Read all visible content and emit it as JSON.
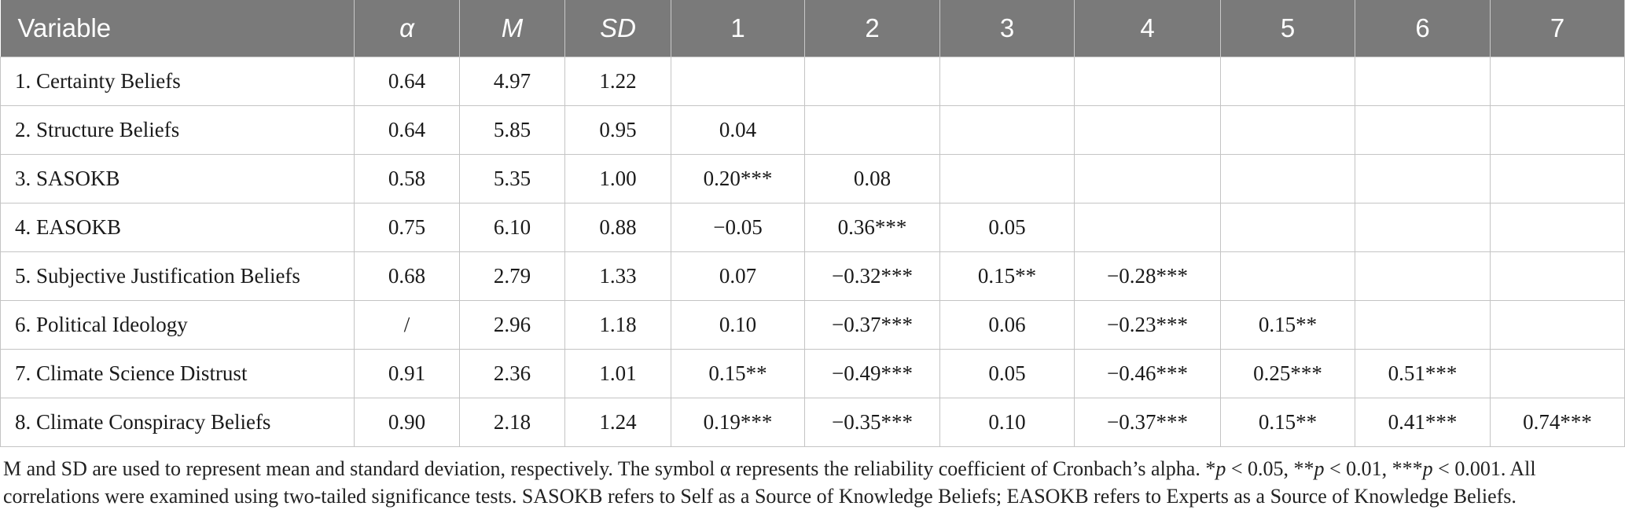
{
  "table": {
    "headers": [
      {
        "label": "Variable",
        "italic": false
      },
      {
        "label": "α",
        "italic": true
      },
      {
        "label": "M",
        "italic": true
      },
      {
        "label": "SD",
        "italic": true
      },
      {
        "label": "1",
        "italic": false
      },
      {
        "label": "2",
        "italic": false
      },
      {
        "label": "3",
        "italic": false
      },
      {
        "label": "4",
        "italic": false
      },
      {
        "label": "5",
        "italic": false
      },
      {
        "label": "6",
        "italic": false
      },
      {
        "label": "7",
        "italic": false
      }
    ],
    "rows": [
      [
        "1.  Certainty Beliefs",
        "0.64",
        "4.97",
        "1.22",
        "",
        "",
        "",
        "",
        "",
        "",
        ""
      ],
      [
        "2.  Structure Beliefs",
        "0.64",
        "5.85",
        "0.95",
        "0.04",
        "",
        "",
        "",
        "",
        "",
        ""
      ],
      [
        "3.  SASOKB",
        "0.58",
        "5.35",
        "1.00",
        "0.20***",
        "0.08",
        "",
        "",
        "",
        "",
        ""
      ],
      [
        "4.  EASOKB",
        "0.75",
        "6.10",
        "0.88",
        "−0.05",
        "0.36***",
        "0.05",
        "",
        "",
        "",
        ""
      ],
      [
        "5.  Subjective Justification Beliefs",
        "0.68",
        "2.79",
        "1.33",
        "0.07",
        "−0.32***",
        "0.15**",
        "−0.28***",
        "",
        "",
        ""
      ],
      [
        "6.  Political Ideology",
        "/",
        "2.96",
        "1.18",
        "0.10",
        "−0.37***",
        "0.06",
        "−0.23***",
        "0.15**",
        "",
        ""
      ],
      [
        "7.  Climate Science Distrust",
        "0.91",
        "2.36",
        "1.01",
        "0.15**",
        "−0.49***",
        "0.05",
        "−0.46***",
        "0.25***",
        "0.51***",
        ""
      ],
      [
        "8.  Climate Conspiracy Beliefs",
        "0.90",
        "2.18",
        "1.24",
        "0.19***",
        "−0.35***",
        "0.10",
        "−0.37***",
        "0.15**",
        "0.41***",
        "0.74***"
      ]
    ]
  },
  "note": {
    "part1": "M and SD are used to represent mean and standard deviation, respectively. The symbol α represents the reliability coefficient of Cronbach’s alpha. *",
    "p1": "p",
    "part2": " < 0.05, **",
    "p2": "p",
    "part3": " < 0.01, ***",
    "p3": "p",
    "part4": " < 0.001. All correlations were examined using two-tailed significance tests. SASOKB refers to Self as a Source of Knowledge Beliefs; EASOKB refers to Experts as a Source of Knowledge Beliefs."
  }
}
